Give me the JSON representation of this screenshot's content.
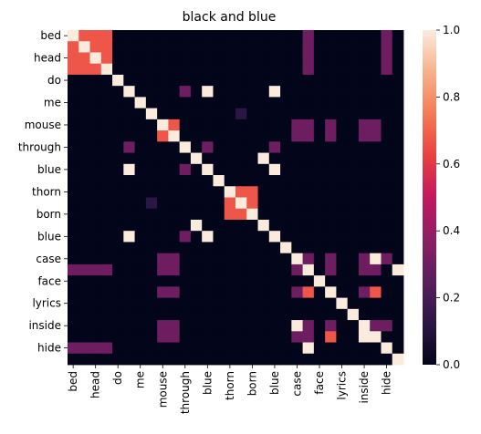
{
  "chart_data": {
    "type": "heatmap",
    "title": "black and blue",
    "xlabel": "",
    "ylabel": "",
    "labels": [
      "bed",
      "",
      "head",
      "",
      "do",
      "",
      "me",
      "",
      "mouse",
      "",
      "through",
      "",
      "blue",
      "",
      "thorn",
      "",
      "born",
      "",
      "blue",
      "",
      "case",
      "",
      "face",
      "",
      "lyrics",
      "",
      "inside",
      "",
      "hide",
      ""
    ],
    "x_tick_labels": [
      "bed",
      "head",
      "do",
      "me",
      "mouse",
      "through",
      "blue",
      "thorn",
      "born",
      "blue",
      "case",
      "face",
      "lyrics",
      "inside",
      "hide"
    ],
    "y_tick_labels": [
      "bed",
      "head",
      "do",
      "me",
      "mouse",
      "through",
      "blue",
      "thorn",
      "born",
      "blue",
      "case",
      "face",
      "lyrics",
      "inside",
      "hide"
    ],
    "colorbar": {
      "min": 0.0,
      "max": 1.0,
      "ticks": [
        "0.0",
        "0.2",
        "0.4",
        "0.6",
        "0.8",
        "1.0"
      ]
    },
    "values": [
      [
        1,
        0.67,
        0.67,
        0.67,
        0,
        0,
        0,
        0,
        0,
        0,
        0,
        0,
        0,
        0,
        0,
        0,
        0,
        0,
        0,
        0,
        0,
        0.3,
        0,
        0,
        0,
        0,
        0,
        0,
        0.3,
        0
      ],
      [
        0.67,
        1,
        0.67,
        0.67,
        0,
        0,
        0,
        0,
        0,
        0,
        0,
        0,
        0,
        0,
        0,
        0,
        0,
        0,
        0,
        0,
        0,
        0.3,
        0,
        0,
        0,
        0,
        0,
        0,
        0.3,
        0
      ],
      [
        0.67,
        0.67,
        1,
        0.67,
        0,
        0,
        0,
        0,
        0,
        0,
        0,
        0,
        0,
        0,
        0,
        0,
        0,
        0,
        0,
        0,
        0,
        0.3,
        0,
        0,
        0,
        0,
        0,
        0,
        0.3,
        0
      ],
      [
        0.67,
        0.67,
        0.67,
        1,
        0,
        0,
        0,
        0,
        0,
        0,
        0,
        0,
        0,
        0,
        0,
        0,
        0,
        0,
        0,
        0,
        0,
        0.3,
        0,
        0,
        0,
        0,
        0,
        0,
        0.3,
        0
      ],
      [
        0,
        0,
        0,
        0,
        1,
        0,
        0,
        0,
        0,
        0,
        0,
        0,
        0,
        0,
        0,
        0,
        0,
        0,
        0,
        0,
        0,
        0,
        0,
        0,
        0,
        0,
        0,
        0,
        0,
        0
      ],
      [
        0,
        0,
        0,
        0,
        0,
        1,
        0,
        0,
        0,
        0,
        0.3,
        0,
        1,
        0,
        0,
        0,
        0,
        0,
        1,
        0,
        0,
        0,
        0,
        0,
        0,
        0,
        0,
        0,
        0,
        0
      ],
      [
        0,
        0,
        0,
        0,
        0,
        0,
        1,
        0,
        0,
        0,
        0,
        0,
        0,
        0,
        0,
        0,
        0,
        0,
        0,
        0,
        0,
        0,
        0,
        0,
        0,
        0,
        0,
        0,
        0,
        0
      ],
      [
        0,
        0,
        0,
        0,
        0,
        0,
        0,
        1,
        0,
        0,
        0,
        0,
        0,
        0,
        0,
        0.12,
        0,
        0,
        0,
        0,
        0,
        0,
        0,
        0,
        0,
        0,
        0,
        0,
        0,
        0
      ],
      [
        0,
        0,
        0,
        0,
        0,
        0,
        0,
        0,
        1,
        0.67,
        0,
        0,
        0,
        0,
        0,
        0,
        0,
        0,
        0,
        0,
        0.3,
        0.3,
        0,
        0.3,
        0,
        0,
        0.3,
        0.3,
        0,
        0
      ],
      [
        0,
        0,
        0,
        0,
        0,
        0,
        0,
        0,
        0.67,
        1,
        0,
        0,
        0,
        0,
        0,
        0,
        0,
        0,
        0,
        0,
        0.3,
        0.3,
        0,
        0.3,
        0,
        0,
        0.3,
        0.3,
        0,
        0
      ],
      [
        0,
        0,
        0,
        0,
        0,
        0.3,
        0,
        0,
        0,
        0,
        1,
        0,
        0.3,
        0,
        0,
        0,
        0,
        0,
        0.3,
        0,
        0,
        0,
        0,
        0,
        0,
        0,
        0,
        0,
        0,
        0
      ],
      [
        0,
        0,
        0,
        0,
        0,
        0,
        0,
        0,
        0,
        0,
        0,
        1,
        0,
        0,
        0,
        0,
        0,
        1,
        0,
        0,
        0,
        0,
        0,
        0,
        0,
        0,
        0,
        0,
        0,
        0
      ],
      [
        0,
        0,
        0,
        0,
        0,
        1,
        0,
        0,
        0,
        0,
        0.3,
        0,
        1,
        0,
        0,
        0,
        0,
        0,
        1,
        0,
        0,
        0,
        0,
        0,
        0,
        0,
        0,
        0,
        0,
        0
      ],
      [
        0,
        0,
        0,
        0,
        0,
        0,
        0,
        0,
        0,
        0,
        0,
        0,
        0,
        1,
        0,
        0,
        0,
        0,
        0,
        0,
        0,
        0,
        0,
        0,
        0,
        0,
        0,
        0,
        0,
        0
      ],
      [
        0,
        0,
        0,
        0,
        0,
        0,
        0,
        0,
        0,
        0,
        0,
        0,
        0,
        0,
        1,
        0.67,
        0.67,
        0,
        0,
        0,
        0,
        0,
        0,
        0,
        0,
        0,
        0,
        0,
        0,
        0
      ],
      [
        0,
        0,
        0,
        0,
        0,
        0,
        0,
        0.12,
        0,
        0,
        0,
        0,
        0,
        0,
        0.67,
        1,
        0.67,
        0,
        0,
        0,
        0,
        0,
        0,
        0,
        0,
        0,
        0,
        0,
        0,
        0
      ],
      [
        0,
        0,
        0,
        0,
        0,
        0,
        0,
        0,
        0,
        0,
        0,
        0,
        0,
        0,
        0.67,
        0.67,
        1,
        0,
        0,
        0,
        0,
        0,
        0,
        0,
        0,
        0,
        0,
        0,
        0,
        0
      ],
      [
        0,
        0,
        0,
        0,
        0,
        0,
        0,
        0,
        0,
        0,
        0,
        1,
        0,
        0,
        0,
        0,
        0,
        1,
        0,
        0,
        0,
        0,
        0,
        0,
        0,
        0,
        0,
        0,
        0,
        0
      ],
      [
        0,
        0,
        0,
        0,
        0,
        1,
        0,
        0,
        0,
        0,
        0.3,
        0,
        1,
        0,
        0,
        0,
        0,
        0,
        1,
        0,
        0,
        0,
        0,
        0,
        0,
        0,
        0,
        0,
        0,
        0
      ],
      [
        0,
        0,
        0,
        0,
        0,
        0,
        0,
        0,
        0,
        0,
        0,
        0,
        0,
        0,
        0,
        0,
        0,
        0,
        0,
        1,
        0,
        0,
        0,
        0,
        0,
        0,
        0,
        0,
        0,
        0
      ],
      [
        0,
        0,
        0,
        0,
        0,
        0,
        0,
        0,
        0.3,
        0.3,
        0,
        0,
        0,
        0,
        0,
        0,
        0,
        0,
        0,
        0,
        1,
        0.3,
        0,
        0.3,
        0,
        0,
        0.3,
        1,
        0.3,
        0
      ],
      [
        0.3,
        0.3,
        0.3,
        0.3,
        0,
        0,
        0,
        0,
        0.3,
        0.3,
        0,
        0,
        0,
        0,
        0,
        0,
        0,
        0,
        0,
        0,
        0.3,
        1,
        0,
        0.3,
        0,
        0,
        0.3,
        0.3,
        0,
        1
      ],
      [
        0,
        0,
        0,
        0,
        0,
        0,
        0,
        0,
        0,
        0,
        0,
        0,
        0,
        0,
        0,
        0,
        0,
        0,
        0,
        0,
        0,
        0,
        1,
        0,
        0,
        0,
        0,
        0,
        0,
        0
      ],
      [
        0,
        0,
        0,
        0,
        0,
        0,
        0,
        0,
        0.3,
        0.3,
        0,
        0,
        0,
        0,
        0,
        0,
        0,
        0,
        0,
        0,
        0.3,
        0.67,
        0,
        1,
        0,
        0,
        0.3,
        0.67,
        0,
        0
      ],
      [
        0,
        0,
        0,
        0,
        0,
        0,
        0,
        0,
        0,
        0,
        0,
        0,
        0,
        0,
        0,
        0,
        0,
        0,
        0,
        0,
        0,
        0,
        0,
        0,
        1,
        0,
        0,
        0,
        0,
        0
      ],
      [
        0,
        0,
        0,
        0,
        0,
        0,
        0,
        0,
        0,
        0,
        0,
        0,
        0,
        0,
        0,
        0,
        0,
        0,
        0,
        0,
        0,
        0,
        0,
        0,
        0,
        1,
        0,
        0,
        0,
        0
      ],
      [
        0,
        0,
        0,
        0,
        0,
        0,
        0,
        0,
        0.3,
        0.3,
        0,
        0,
        0,
        0,
        0,
        0,
        0,
        0,
        0,
        0,
        1,
        0.3,
        0,
        0.3,
        0,
        0,
        1,
        0.3,
        0.3,
        0
      ],
      [
        0,
        0,
        0,
        0,
        0,
        0,
        0,
        0,
        0.3,
        0.3,
        0,
        0,
        0,
        0,
        0,
        0,
        0,
        0,
        0,
        0,
        0.3,
        0.3,
        0,
        0.67,
        0,
        0,
        1,
        1,
        0,
        0
      ],
      [
        0.3,
        0.3,
        0.3,
        0.3,
        0,
        0,
        0,
        0,
        0,
        0,
        0,
        0,
        0,
        0,
        0,
        0,
        0,
        0,
        0,
        0,
        0,
        1,
        0,
        0,
        0,
        0,
        0,
        0,
        1,
        0
      ],
      [
        0,
        0,
        0,
        0,
        0,
        0,
        0,
        0,
        0,
        0,
        0,
        0,
        0,
        0,
        0,
        0,
        0,
        0,
        0,
        0,
        0,
        0,
        0,
        0,
        0,
        0,
        0,
        0,
        0,
        1
      ]
    ]
  }
}
